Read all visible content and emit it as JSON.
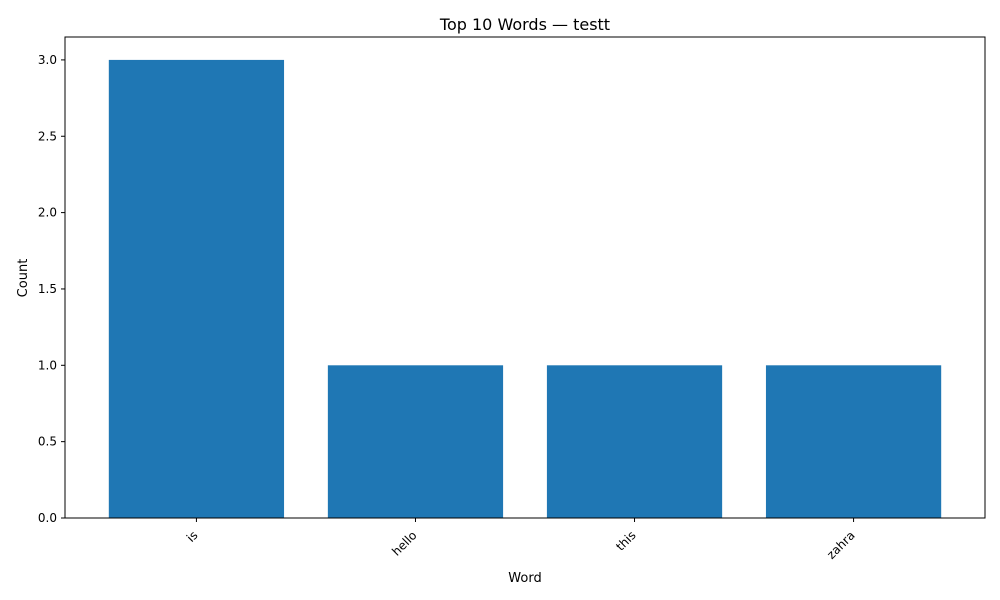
{
  "chart_data": {
    "type": "bar",
    "title": "Top 10 Words — testt",
    "xlabel": "Word",
    "ylabel": "Count",
    "categories": [
      "is",
      "hello",
      "this",
      "zahra"
    ],
    "values": [
      3,
      1,
      1,
      1
    ],
    "ylim": [
      0,
      3.15
    ],
    "yticks": [
      "0.0",
      "0.5",
      "1.0",
      "1.5",
      "2.0",
      "2.5",
      "3.0"
    ],
    "bar_color": "#1f77b4",
    "grid": false,
    "legend": "none"
  }
}
